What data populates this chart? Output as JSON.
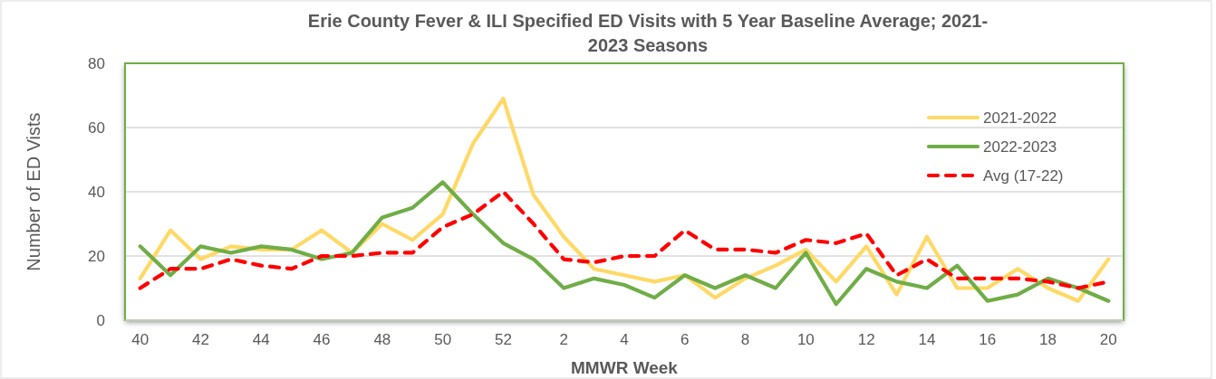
{
  "chart_data": {
    "type": "line",
    "title": "Erie County Fever & ILI Specified ED Visits with 5 Year Baseline Average; 2021-2023 Seasons",
    "xlabel": "MMWR Week",
    "ylabel": "Number of ED Vists",
    "categories": [
      "40",
      null,
      "42",
      null,
      "44",
      null,
      "46",
      null,
      "48",
      null,
      "50",
      null,
      "52",
      null,
      "2",
      null,
      "4",
      null,
      "6",
      null,
      "8",
      null,
      "10",
      null,
      "12",
      null,
      "14",
      null,
      "16",
      null,
      "18",
      null,
      "20"
    ],
    "series": [
      {
        "name": "2021-2022",
        "color": "#ffd966",
        "values": [
          13,
          28,
          19,
          23,
          22,
          22,
          28,
          21,
          30,
          25,
          33,
          55,
          69,
          39,
          26,
          16,
          14,
          12,
          14,
          7,
          13,
          17,
          22,
          12,
          23,
          8,
          26,
          10,
          10,
          16,
          10,
          6,
          19
        ]
      },
      {
        "name": "2022-2023",
        "color": "#70ad47",
        "values": [
          23,
          14,
          23,
          21,
          23,
          22,
          19,
          21,
          32,
          35,
          43,
          33,
          24,
          19,
          10,
          13,
          11,
          7,
          14,
          10,
          14,
          10,
          21,
          5,
          16,
          12,
          10,
          17,
          6,
          8,
          13,
          10,
          6
        ]
      },
      {
        "name": "Avg (17-22)",
        "color": "#ff0000",
        "line_style": "dashed",
        "values": [
          10,
          16,
          16,
          19,
          17,
          16,
          20,
          20,
          21,
          21,
          29,
          33,
          40,
          30,
          19,
          18,
          20,
          20,
          28,
          22,
          22,
          21,
          25,
          24,
          27,
          14,
          19,
          13,
          13,
          13,
          12,
          10,
          12
        ]
      }
    ],
    "ylim": [
      0,
      80
    ],
    "yticks": [
      0,
      20,
      40,
      60,
      80
    ],
    "grid": "y",
    "legend": "top right",
    "marker": "none",
    "line_style": "solid"
  }
}
